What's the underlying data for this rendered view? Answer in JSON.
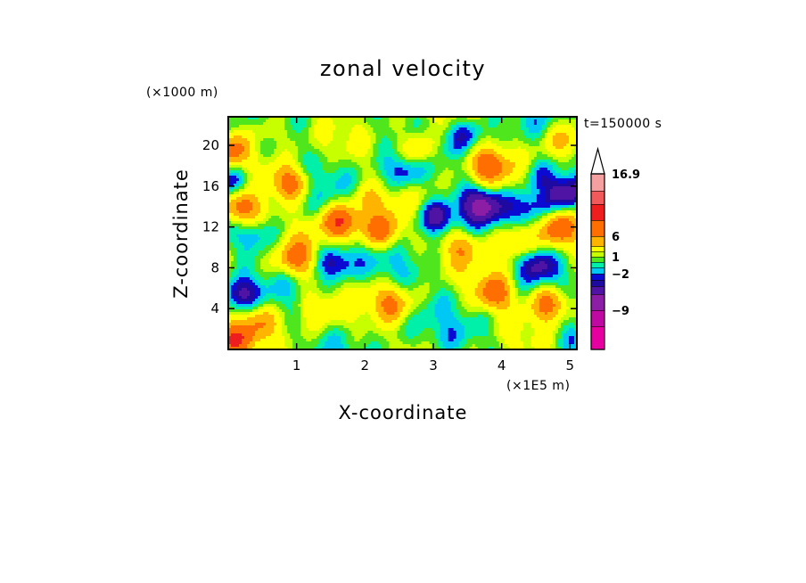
{
  "chart_data": {
    "type": "heatmap",
    "title": "zonal velocity",
    "xlabel": "X-coordinate",
    "ylabel": "Z-coordinate",
    "x_unit": "(×1E5 m)",
    "y_unit": "(×1000 m)",
    "time_label": "t=150000 s",
    "xlim": [
      0,
      5.1
    ],
    "ylim": [
      0,
      22.8
    ],
    "x_ticks": [
      "1",
      "2",
      "3",
      "4",
      "5"
    ],
    "y_ticks": [
      "4",
      "8",
      "12",
      "16",
      "20"
    ],
    "colorbar": {
      "levels": [
        -14,
        -11,
        -9,
        -6,
        -4,
        -3,
        -2,
        -1,
        0,
        1,
        2,
        4,
        6,
        9,
        11,
        14,
        16.9
      ],
      "colors": [
        "#e600a0",
        "#be0aa0",
        "#8c1ea5",
        "#5014a5",
        "#1e0aa0",
        "#0a0ad2",
        "#00c8f5",
        "#00f0aa",
        "#50e61e",
        "#c8ff00",
        "#ffff00",
        "#ffb400",
        "#ff6e00",
        "#ee1e1e",
        "#f05a5a",
        "#f5a0a0"
      ],
      "labels": [
        "16.9",
        "6",
        "1",
        "-2",
        "-9"
      ],
      "label_values": [
        16.9,
        6,
        1,
        -2,
        -9
      ],
      "extend": "max"
    },
    "features": [
      {
        "x": 0.15,
        "z": 5.5,
        "value": -5
      },
      {
        "x": 0.1,
        "z": 16.5,
        "value": -5
      },
      {
        "x": 0.2,
        "z": 13.8,
        "value": 8
      },
      {
        "x": 0.05,
        "z": 19.6,
        "value": 6
      },
      {
        "x": 0.05,
        "z": 0.9,
        "value": 7
      },
      {
        "x": 0.45,
        "z": 11.3,
        "value": -3
      },
      {
        "x": 0.45,
        "z": 2.8,
        "value": 4
      },
      {
        "x": 0.6,
        "z": 21.6,
        "value": 3
      },
      {
        "x": 0.9,
        "z": 16.3,
        "value": 7
      },
      {
        "x": 1.0,
        "z": 8.8,
        "value": 6
      },
      {
        "x": 1.35,
        "z": 17.8,
        "value": -1
      },
      {
        "x": 1.55,
        "z": 8.5,
        "value": -5
      },
      {
        "x": 1.65,
        "z": 12.5,
        "value": 8
      },
      {
        "x": 1.3,
        "z": 4.0,
        "value": 3
      },
      {
        "x": 2.1,
        "z": 14.5,
        "value": 3
      },
      {
        "x": 2.25,
        "z": 11.5,
        "value": 7
      },
      {
        "x": 2.15,
        "z": 21.0,
        "value": -1
      },
      {
        "x": 2.4,
        "z": 4.5,
        "value": 5
      },
      {
        "x": 2.55,
        "z": 17.5,
        "value": -4
      },
      {
        "x": 2.3,
        "z": 8.0,
        "value": -1
      },
      {
        "x": 2.8,
        "z": 19.5,
        "value": 5
      },
      {
        "x": 3.05,
        "z": 13.0,
        "value": -6
      },
      {
        "x": 2.9,
        "z": 7.0,
        "value": -1
      },
      {
        "x": 3.15,
        "z": 0.8,
        "value": -1
      },
      {
        "x": 3.5,
        "z": 21.0,
        "value": -3
      },
      {
        "x": 3.4,
        "z": 10.2,
        "value": 4
      },
      {
        "x": 3.7,
        "z": 14.2,
        "value": -7
      },
      {
        "x": 3.8,
        "z": 18.0,
        "value": 7
      },
      {
        "x": 3.9,
        "z": 5.5,
        "value": 7
      },
      {
        "x": 3.7,
        "z": 1.5,
        "value": -1
      },
      {
        "x": 4.2,
        "z": 10.5,
        "value": 5
      },
      {
        "x": 4.4,
        "z": 13.8,
        "value": -4
      },
      {
        "x": 4.5,
        "z": 8.5,
        "value": -5
      },
      {
        "x": 4.55,
        "z": 17.2,
        "value": -3
      },
      {
        "x": 4.7,
        "z": 4.5,
        "value": 7
      },
      {
        "x": 4.8,
        "z": 12.0,
        "value": 6
      },
      {
        "x": 4.9,
        "z": 15.2,
        "value": -6
      },
      {
        "x": 4.9,
        "z": 20.5,
        "value": 4
      },
      {
        "x": 4.95,
        "z": 1.5,
        "value": -2
      }
    ]
  }
}
